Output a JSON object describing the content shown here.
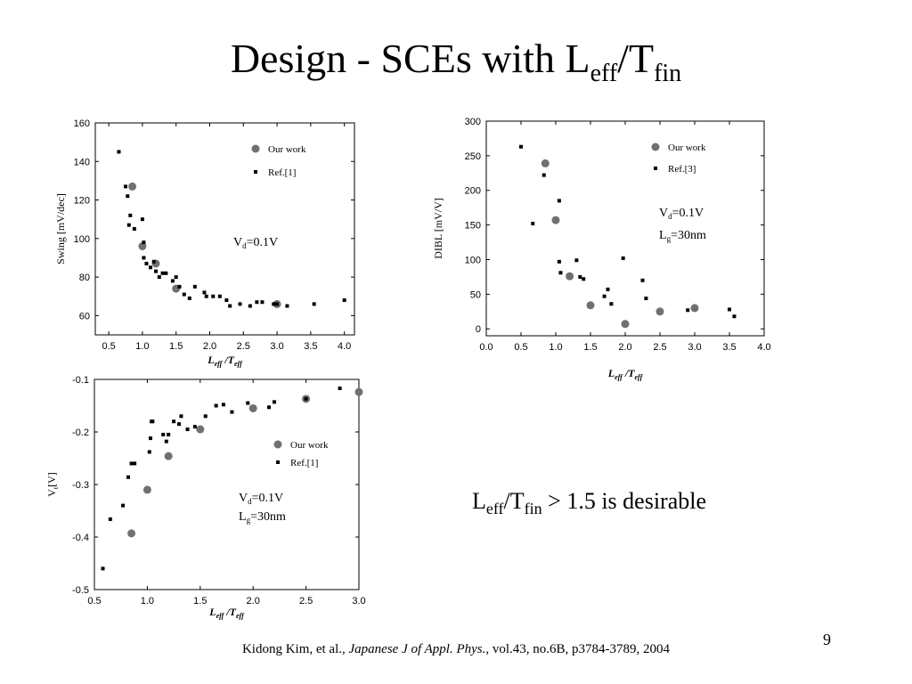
{
  "slide": {
    "title": {
      "main": "Design - SCEs with L",
      "sub1": "eff",
      "slash": "/T",
      "sub2": "fin"
    },
    "note": {
      "l": "L",
      "sub1": "eff",
      "slash": "/T",
      "sub2": "fin",
      "rest": " > 1.5 is desirable"
    },
    "slide_number": "9",
    "citation": {
      "authors": "Kidong Kim, et al., ",
      "journal": "Japanese J of Appl. Phys.",
      "details": ", vol.43, no.6B, p3784-3789, 2004"
    }
  },
  "colors": {
    "our_work": "#707070",
    "ref": "#000000",
    "axis": "#000000"
  },
  "chart_data": [
    {
      "type": "scatter",
      "ylabel": "Swing [mV/dec]",
      "xlabel_main": "L",
      "xlabel_sub1": "eff",
      "xlabel_mid": "/T",
      "xlabel_sub2": "eff",
      "xlim": [
        0.3,
        4.15
      ],
      "ylim": [
        50,
        160
      ],
      "xticks": [
        "0.5",
        "1.0",
        "1.5",
        "2.0",
        "2.5",
        "3.0",
        "3.5",
        "4.0"
      ],
      "yticks": [
        "60",
        "80",
        "100",
        "120",
        "140",
        "160"
      ],
      "legend_position": "top-right",
      "annotation": {
        "v": "V",
        "vsub": "d",
        "vrest": "=0.1V",
        "l": "",
        "lsub": "",
        "lrest": ""
      },
      "series": [
        {
          "name": "Our work",
          "marker": "circle",
          "x": [
            0.85,
            1.0,
            1.2,
            1.5,
            3.0
          ],
          "y": [
            127,
            96,
            87,
            74,
            66
          ]
        },
        {
          "name": "Ref.[1]",
          "marker": "square",
          "x": [
            0.65,
            0.75,
            0.78,
            0.8,
            0.82,
            0.88,
            1.0,
            1.02,
            1.02,
            1.06,
            1.12,
            1.17,
            1.2,
            1.25,
            1.3,
            1.35,
            1.45,
            1.5,
            1.55,
            1.62,
            1.7,
            1.78,
            1.92,
            1.95,
            2.05,
            2.15,
            2.25,
            2.3,
            2.45,
            2.6,
            2.7,
            2.78,
            2.95,
            3.0,
            3.15,
            3.55,
            4.0
          ],
          "y": [
            145,
            127,
            122,
            107,
            112,
            105,
            110,
            98,
            90,
            87,
            85,
            88,
            83,
            80,
            82,
            82,
            78,
            80,
            75,
            71,
            69,
            75,
            72,
            70,
            70,
            70,
            68,
            65,
            66,
            65,
            67,
            67,
            66,
            66,
            65,
            66,
            68
          ]
        }
      ]
    },
    {
      "type": "scatter",
      "ylabel": "DIBL [mV/V]",
      "xlabel_main": "L",
      "xlabel_sub1": "eff",
      "xlabel_mid": "/T",
      "xlabel_sub2": "eff",
      "xlim": [
        0.0,
        4.0
      ],
      "ylim": [
        -10,
        300
      ],
      "xticks": [
        "0.0",
        "0.5",
        "1.0",
        "1.5",
        "2.0",
        "2.5",
        "3.0",
        "3.5",
        "4.0"
      ],
      "yticks": [
        "0",
        "50",
        "100",
        "150",
        "200",
        "250",
        "300"
      ],
      "legend_position": "top-right",
      "annotation": {
        "v": "V",
        "vsub": "d",
        "vrest": "=0.1V",
        "l": "L",
        "lsub": "g",
        "lrest": "=30nm"
      },
      "series": [
        {
          "name": "Our work",
          "marker": "circle",
          "x": [
            0.85,
            1.0,
            1.2,
            1.5,
            2.0,
            2.5,
            3.0
          ],
          "y": [
            239,
            157,
            76,
            34,
            7,
            25,
            30
          ]
        },
        {
          "name": "Ref.[3]",
          "marker": "square",
          "x": [
            0.5,
            0.67,
            0.83,
            1.05,
            1.05,
            1.07,
            1.3,
            1.35,
            1.4,
            1.7,
            1.75,
            1.8,
            1.97,
            2.25,
            2.3,
            2.9,
            3.5,
            3.57
          ],
          "y": [
            263,
            152,
            222,
            185,
            97,
            81,
            99,
            75,
            72,
            47,
            57,
            36,
            102,
            70,
            44,
            27,
            28,
            18
          ]
        }
      ]
    },
    {
      "type": "scatter",
      "ylabel": "V [V]",
      "ylabel_main": "V",
      "ylabel_sub": "t",
      "ylabel_rest": "[V]",
      "xlabel_main": "L",
      "xlabel_sub1": "eff",
      "xlabel_mid": "/T",
      "xlabel_sub2": "eff",
      "xlim": [
        0.5,
        3.0
      ],
      "ylim": [
        -0.5,
        -0.1
      ],
      "xticks": [
        "0.5",
        "1.0",
        "1.5",
        "2.0",
        "2.5",
        "3.0"
      ],
      "yticks": [
        "-0.5",
        "-0.4",
        "-0.3",
        "-0.2",
        "-0.1"
      ],
      "legend_position": "right",
      "annotation": {
        "v": "V",
        "vsub": "d",
        "vrest": "=0.1V",
        "l": "L",
        "lsub": "g",
        "lrest": "=30nm"
      },
      "series": [
        {
          "name": "Our work",
          "marker": "circle",
          "x": [
            0.85,
            1.0,
            1.2,
            1.5,
            2.0,
            2.5,
            3.0
          ],
          "y": [
            -0.393,
            -0.31,
            -0.246,
            -0.195,
            -0.155,
            -0.137,
            -0.124
          ]
        },
        {
          "name": "Ref.[1]",
          "marker": "square",
          "x": [
            0.58,
            0.65,
            0.77,
            0.82,
            0.85,
            0.88,
            1.02,
            1.03,
            1.04,
            1.05,
            1.15,
            1.18,
            1.2,
            1.25,
            1.3,
            1.32,
            1.38,
            1.45,
            1.55,
            1.65,
            1.72,
            1.8,
            1.95,
            2.15,
            2.2,
            2.5,
            2.82
          ],
          "y": [
            -0.46,
            -0.366,
            -0.34,
            -0.286,
            -0.26,
            -0.26,
            -0.238,
            -0.212,
            -0.18,
            -0.18,
            -0.205,
            -0.218,
            -0.205,
            -0.18,
            -0.185,
            -0.17,
            -0.195,
            -0.19,
            -0.17,
            -0.15,
            -0.148,
            -0.162,
            -0.145,
            -0.153,
            -0.143,
            -0.137,
            -0.117
          ]
        }
      ]
    }
  ]
}
